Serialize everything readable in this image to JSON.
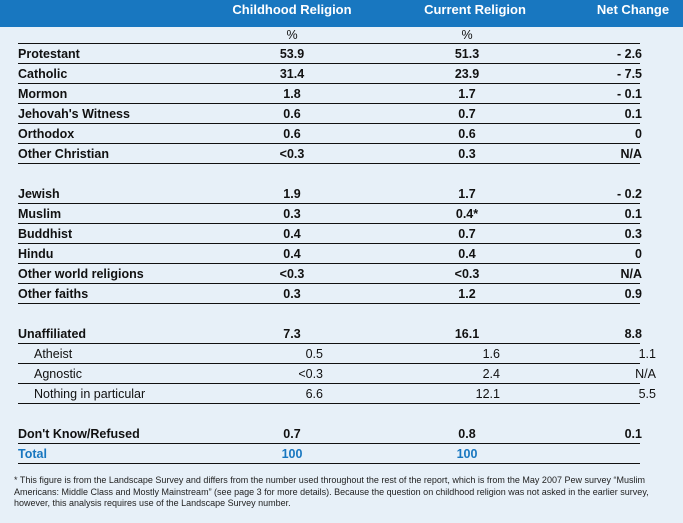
{
  "header": {
    "col1": "Childhood Religion",
    "col2": "Current Religion",
    "col3": "Net  Change"
  },
  "units": {
    "col1": "%",
    "col2": "%"
  },
  "rows": [
    {
      "label": "Protestant",
      "childhood": "53.9",
      "current": "51.3",
      "change": "- 2.6",
      "style": "bold"
    },
    {
      "label": "Catholic",
      "childhood": "31.4",
      "current": "23.9",
      "change": "- 7.5",
      "style": "bold"
    },
    {
      "label": "Mormon",
      "childhood": "1.8",
      "current": "1.7",
      "change": "- 0.1",
      "style": "bold"
    },
    {
      "label": "Jehovah's Witness",
      "childhood": "0.6",
      "current": "0.7",
      "change": "0.1",
      "style": "bold"
    },
    {
      "label": "Orthodox",
      "childhood": "0.6",
      "current": "0.6",
      "change": "0",
      "style": "bold"
    },
    {
      "label": "Other Christian",
      "childhood": "<0.3",
      "current": "0.3",
      "change": "N/A",
      "style": "bold"
    },
    {
      "label": "Jewish",
      "childhood": "1.9",
      "current": "1.7",
      "change": "- 0.2",
      "style": "bold"
    },
    {
      "label": "Muslim",
      "childhood": "0.3",
      "current": "0.4*",
      "change": "0.1",
      "style": "bold"
    },
    {
      "label": "Buddhist",
      "childhood": "0.4",
      "current": "0.7",
      "change": "0.3",
      "style": "bold"
    },
    {
      "label": "Hindu",
      "childhood": "0.4",
      "current": "0.4",
      "change": "0",
      "style": "bold"
    },
    {
      "label": "Other world religions",
      "childhood": "<0.3",
      "current": "<0.3",
      "change": "N/A",
      "style": "bold"
    },
    {
      "label": "Other faiths",
      "childhood": "0.3",
      "current": "1.2",
      "change": "0.9",
      "style": "bold"
    },
    {
      "label": "Unaffiliated",
      "childhood": "7.3",
      "current": "16.1",
      "change": "8.8",
      "style": "bold"
    },
    {
      "label": "Atheist",
      "childhood": "0.5",
      "current": "1.6",
      "change": "1.1",
      "style": "sub"
    },
    {
      "label": "Agnostic",
      "childhood": "<0.3",
      "current": "2.4",
      "change": "N/A",
      "style": "sub"
    },
    {
      "label": "Nothing in particular",
      "childhood": "6.6",
      "current": "12.1",
      "change": "5.5",
      "style": "sub"
    },
    {
      "label": "Don't Know/Refused",
      "childhood": "0.7",
      "current": "0.8",
      "change": "0.1",
      "style": "bold"
    },
    {
      "label": "Total",
      "childhood": "100",
      "current": "100",
      "change": "",
      "style": "total"
    }
  ],
  "footnote": "* This figure is from the Landscape Survey and differs from the number used throughout the rest of the report, which is from the May 2007 Pew survey “Muslim Americans: Middle Class and Mostly Mainstream” (see page 3 for more details). Because the question on childhood religion was not asked in the earlier survey, however, this analysis requires use of the Landscape Survey number."
}
